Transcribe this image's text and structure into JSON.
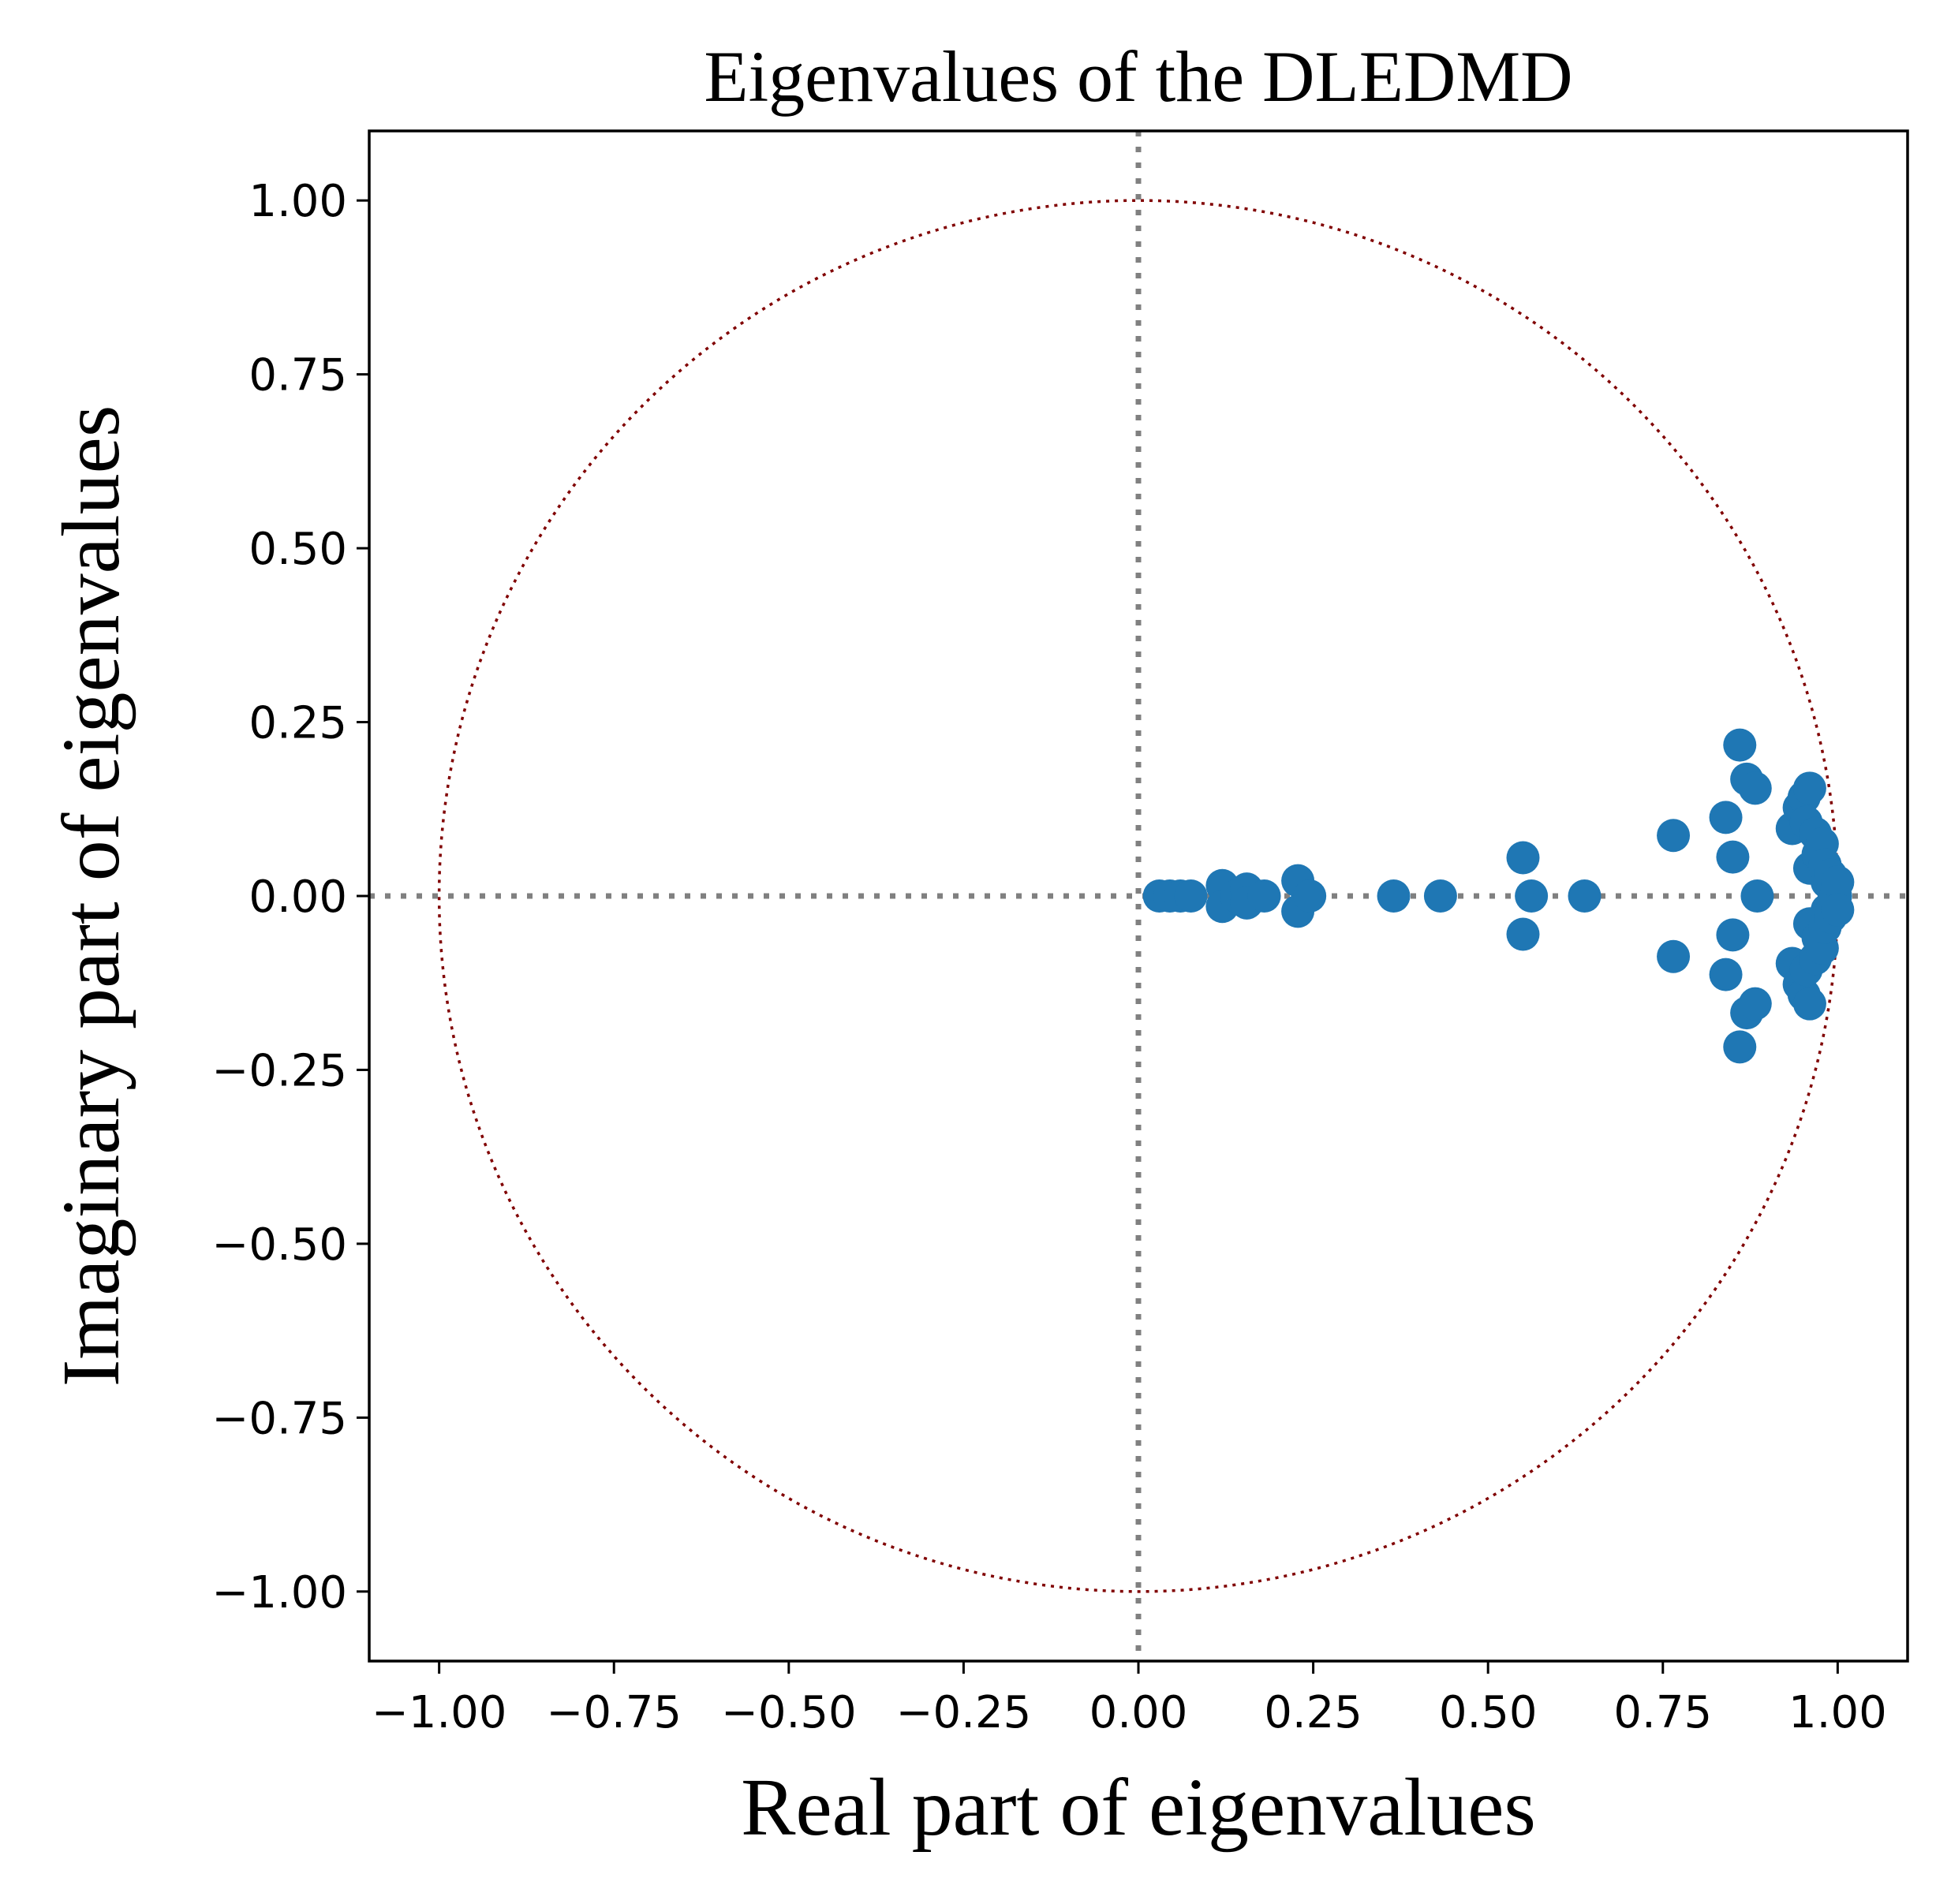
{
  "chart_data": {
    "type": "scatter",
    "title": "Eigenvalues of the DLEDMD",
    "xlabel": "Real part of eigenvalues",
    "ylabel": "Imaginary part of eigenvalues",
    "xlim": [
      -1.1,
      1.1
    ],
    "ylim": [
      -1.1,
      1.1
    ],
    "x_ticks": [
      -1.0,
      -0.75,
      -0.5,
      -0.25,
      0.0,
      0.25,
      0.5,
      0.75,
      1.0
    ],
    "x_tick_labels": [
      "−1.00",
      "−0.75",
      "−0.50",
      "−0.25",
      "0.00",
      "0.25",
      "0.50",
      "0.75",
      "1.00"
    ],
    "y_ticks": [
      1.0,
      0.75,
      0.5,
      0.25,
      0.0,
      -0.25,
      -0.5,
      -0.75,
      -1.0
    ],
    "y_tick_labels": [
      "1.00",
      "0.75",
      "0.50",
      "0.25",
      "0.00",
      "−0.25",
      "−0.50",
      "−0.75",
      "−1.00"
    ],
    "grid": false,
    "reference_lines": {
      "x": 0,
      "y": 0,
      "style": "dotted",
      "color": "#808080"
    },
    "unit_circle": {
      "radius": 1,
      "style": "dotted",
      "color": "#800000"
    },
    "marker_color": "#1f77b4",
    "points": [
      [
        0.03,
        0.0
      ],
      [
        0.045,
        0.0
      ],
      [
        0.06,
        0.0
      ],
      [
        0.075,
        0.0
      ],
      [
        0.12,
        0.015
      ],
      [
        0.12,
        -0.015
      ],
      [
        0.14,
        0.0
      ],
      [
        0.155,
        0.01
      ],
      [
        0.155,
        -0.01
      ],
      [
        0.18,
        0.0
      ],
      [
        0.228,
        0.022
      ],
      [
        0.228,
        -0.022
      ],
      [
        0.245,
        0.0
      ],
      [
        0.365,
        0.0
      ],
      [
        0.432,
        0.0
      ],
      [
        0.55,
        0.055
      ],
      [
        0.55,
        -0.055
      ],
      [
        0.562,
        0.0
      ],
      [
        0.638,
        0.0
      ],
      [
        0.765,
        0.087
      ],
      [
        0.765,
        -0.087
      ],
      [
        0.84,
        0.113
      ],
      [
        0.84,
        -0.113
      ],
      [
        0.85,
        0.056
      ],
      [
        0.85,
        -0.056
      ],
      [
        0.86,
        0.217
      ],
      [
        0.86,
        -0.217
      ],
      [
        0.87,
        0.168
      ],
      [
        0.87,
        -0.168
      ],
      [
        0.882,
        0.155
      ],
      [
        0.882,
        -0.155
      ],
      [
        0.885,
        0.0
      ],
      [
        0.935,
        0.097
      ],
      [
        0.935,
        -0.097
      ],
      [
        0.945,
        0.127
      ],
      [
        0.945,
        -0.127
      ],
      [
        0.952,
        0.142
      ],
      [
        0.952,
        -0.142
      ],
      [
        0.96,
        0.155
      ],
      [
        0.96,
        -0.155
      ],
      [
        0.955,
        0.106
      ],
      [
        0.955,
        -0.106
      ],
      [
        0.96,
        0.04
      ],
      [
        0.96,
        -0.04
      ],
      [
        0.968,
        0.09
      ],
      [
        0.968,
        -0.09
      ],
      [
        0.972,
        0.06
      ],
      [
        0.972,
        -0.06
      ],
      [
        0.978,
        0.075
      ],
      [
        0.978,
        -0.075
      ],
      [
        0.982,
        0.045
      ],
      [
        0.982,
        -0.045
      ],
      [
        0.985,
        0.02
      ],
      [
        0.985,
        -0.02
      ],
      [
        0.99,
        0.03
      ],
      [
        0.99,
        -0.03
      ],
      [
        0.993,
        0.01
      ],
      [
        0.993,
        -0.01
      ],
      [
        0.997,
        0.0
      ],
      [
        1.0,
        0.02
      ],
      [
        1.0,
        -0.02
      ]
    ]
  }
}
